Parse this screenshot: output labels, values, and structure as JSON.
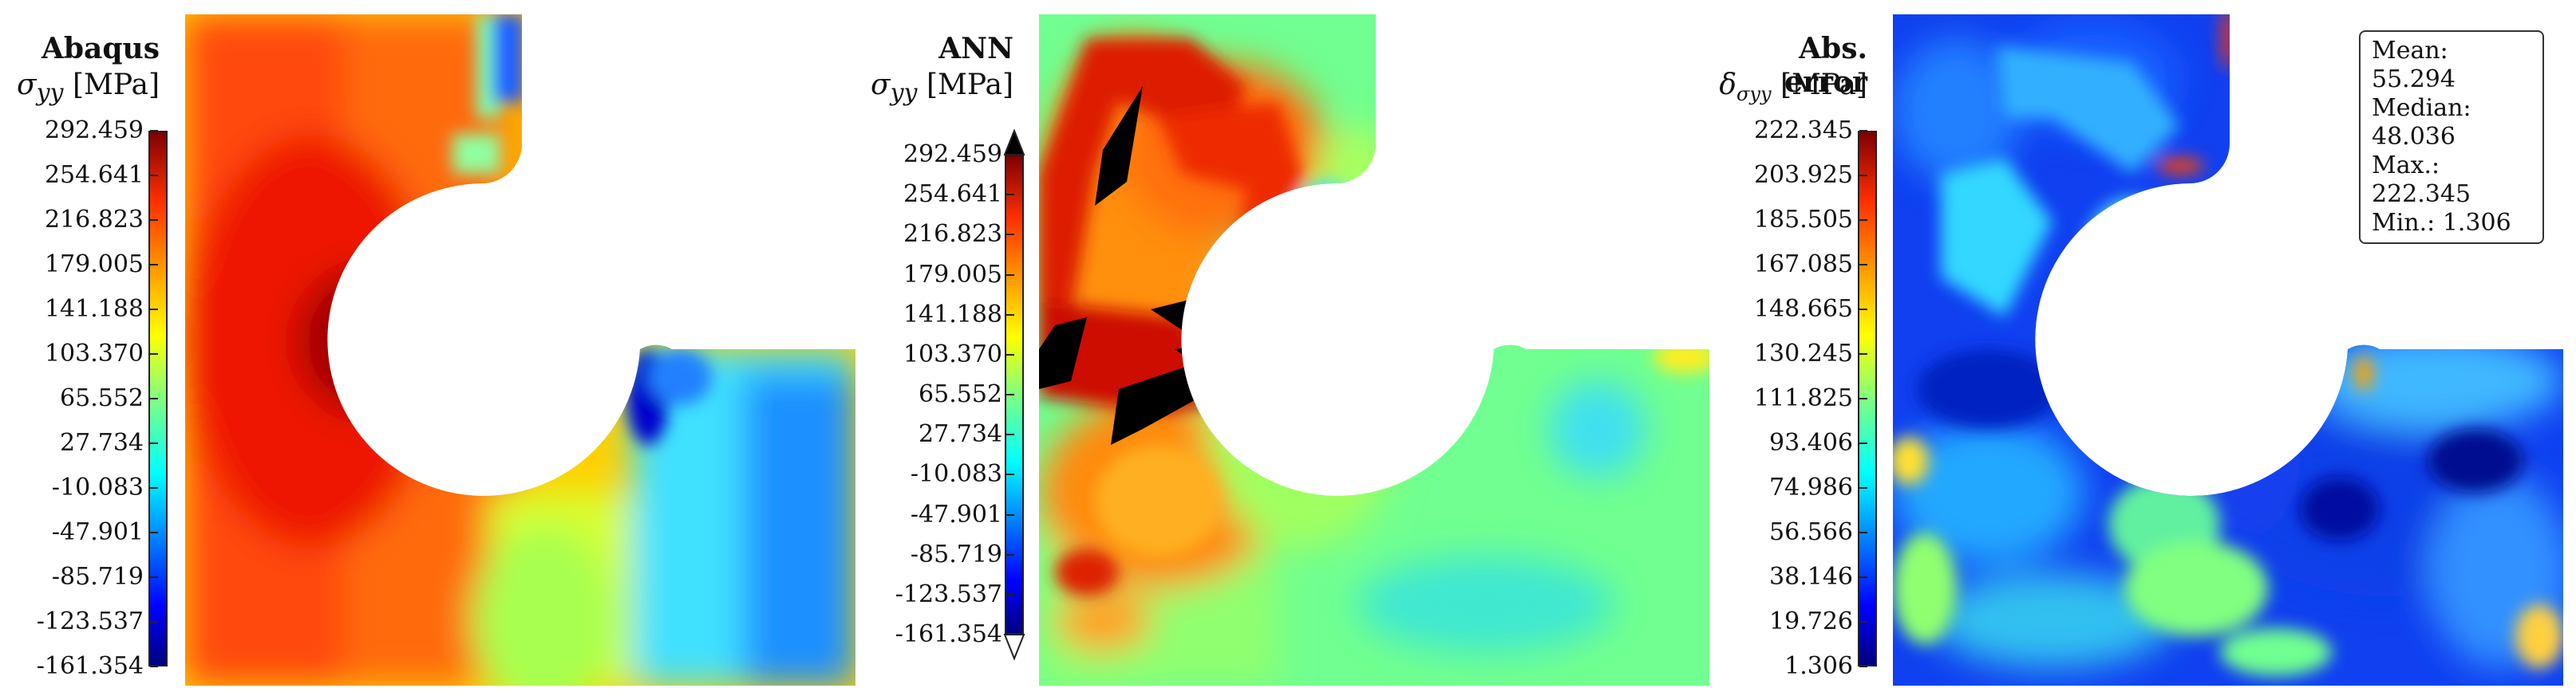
{
  "panels": [
    {
      "title": "Abaqus",
      "symbol": "σ",
      "subscript": "yy",
      "unit": "[MPa]",
      "colorbar_ticks": [
        "292.459",
        "254.641",
        "216.823",
        "179.005",
        "141.188",
        "103.370",
        "65.552",
        "27.734",
        "-10.083",
        "-47.901",
        "-85.719",
        "-123.537",
        "-161.354"
      ],
      "colorbar_extend": "none"
    },
    {
      "title": "ANN",
      "symbol": "σ",
      "subscript": "yy",
      "unit": "[MPa]",
      "colorbar_ticks": [
        "292.459",
        "254.641",
        "216.823",
        "179.005",
        "141.188",
        "103.370",
        "65.552",
        "27.734",
        "-10.083",
        "-47.901",
        "-85.719",
        "-123.537",
        "-161.354"
      ],
      "colorbar_extend": "both"
    },
    {
      "title": "Abs. error",
      "symbol": "δ",
      "subscript": "σyy",
      "unit": "[MPa]",
      "colorbar_ticks": [
        "222.345",
        "203.925",
        "185.505",
        "167.085",
        "148.665",
        "130.245",
        "111.825",
        "93.406",
        "74.986",
        "56.566",
        "38.146",
        "19.726",
        "1.306"
      ],
      "colorbar_extend": "none"
    }
  ],
  "stats": {
    "mean": "Mean: 55.294",
    "median": "Median: 48.036",
    "max": "Max.: 222.345",
    "min": "Min.: 1.306"
  },
  "chart_data": [
    {
      "type": "heatmap",
      "title": "Abaqus",
      "quantity": "σyy",
      "unit": "MPa",
      "colormap": "jet",
      "vmin": -161.354,
      "vmax": 292.459
    },
    {
      "type": "heatmap",
      "title": "ANN",
      "quantity": "σyy",
      "unit": "MPa",
      "colormap": "jet",
      "vmin": -161.354,
      "vmax": 292.459
    },
    {
      "type": "heatmap",
      "title": "Abs. error",
      "quantity": "δσyy",
      "unit": "MPa",
      "colormap": "jet",
      "vmin": 1.306,
      "vmax": 222.345,
      "statistics": {
        "mean": 55.294,
        "median": 48.036,
        "max": 222.345,
        "min": 1.306
      }
    }
  ]
}
